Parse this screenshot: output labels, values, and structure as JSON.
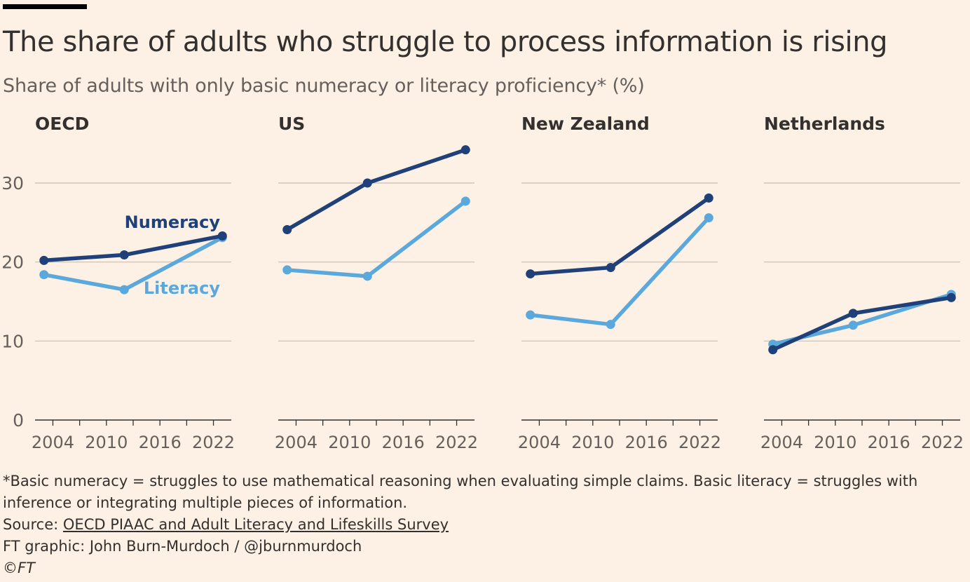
{
  "header": {
    "title": "The share of adults who struggle to process information is rising",
    "subtitle": "Share of adults with only basic numeracy or literacy proficiency* (%)"
  },
  "colors": {
    "background": "#FDF1E5",
    "numeracy": "#1F4078",
    "literacy": "#5AA8DC",
    "grid": "#C7BDB4",
    "text": "#33302E",
    "subtext": "#66605C"
  },
  "chart_data": {
    "type": "line",
    "ylim": [
      0,
      35
    ],
    "yticks": [
      0,
      10,
      20,
      30
    ],
    "xlim": [
      2002,
      2024
    ],
    "xticks": [
      2004,
      2010,
      2016,
      2022
    ],
    "grid": true,
    "inline_labels": {
      "numeracy": "Numeracy",
      "literacy": "Literacy"
    },
    "panels": [
      {
        "title": "OECD",
        "series": [
          {
            "key": "numeracy",
            "x": [
              2003,
              2012,
              2023
            ],
            "y": [
              20.2,
              20.9,
              23.3
            ]
          },
          {
            "key": "literacy",
            "x": [
              2003,
              2012,
              2023
            ],
            "y": [
              18.4,
              16.5,
              23.1
            ]
          }
        ]
      },
      {
        "title": "US",
        "series": [
          {
            "key": "numeracy",
            "x": [
              2003,
              2012,
              2023
            ],
            "y": [
              24.1,
              30.0,
              34.2
            ]
          },
          {
            "key": "literacy",
            "x": [
              2003,
              2012,
              2023
            ],
            "y": [
              19.0,
              18.2,
              27.7
            ]
          }
        ]
      },
      {
        "title": "New Zealand",
        "series": [
          {
            "key": "numeracy",
            "x": [
              2003,
              2012,
              2023
            ],
            "y": [
              18.5,
              19.3,
              28.1
            ]
          },
          {
            "key": "literacy",
            "x": [
              2003,
              2012,
              2023
            ],
            "y": [
              13.3,
              12.1,
              25.6
            ]
          }
        ]
      },
      {
        "title": "Netherlands",
        "series": [
          {
            "key": "numeracy",
            "x": [
              2003,
              2012,
              2023
            ],
            "y": [
              8.9,
              13.5,
              15.5
            ]
          },
          {
            "key": "literacy",
            "x": [
              2003,
              2012,
              2023
            ],
            "y": [
              9.6,
              12.0,
              15.9
            ]
          }
        ]
      }
    ]
  },
  "footer": {
    "note_line1": "*Basic numeracy = struggles to use mathematical reasoning when evaluating simple claims. Basic literacy = struggles with",
    "note_line2": "inference or integrating multiple pieces of information.",
    "source_prefix": "Source: ",
    "source_link": "OECD PIAAC and Adult Literacy and Lifeskills Survey",
    "credit": "FT graphic: John Burn-Murdoch / @jburnmurdoch",
    "copyright": "©FT"
  }
}
